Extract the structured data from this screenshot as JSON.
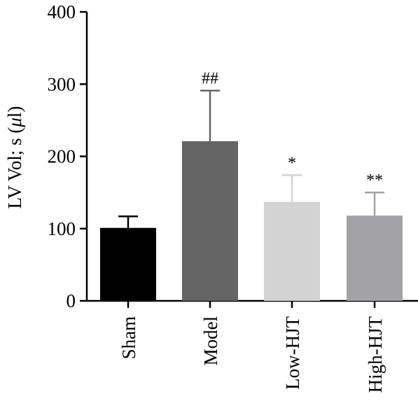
{
  "chart_data": {
    "type": "bar",
    "title": "",
    "xlabel": "",
    "ylabel_parts": {
      "main": "LV Vol; s (",
      "unit_greek": "μ",
      "unit_rest": "l)"
    },
    "ylim": [
      0,
      400
    ],
    "yticks": [
      "0",
      "100",
      "200",
      "300",
      "400"
    ],
    "ytick_values": [
      0,
      100,
      200,
      300,
      400
    ],
    "grid": false,
    "legend": "none",
    "categories": [
      "Sham",
      "Model",
      "Low-HJT",
      "High-HJT"
    ],
    "values": [
      101,
      221,
      137,
      118
    ],
    "errors": [
      16,
      70,
      37,
      32
    ],
    "annotations": [
      "",
      "##",
      "*",
      "**"
    ],
    "colors": [
      "#000000",
      "#646464",
      "#d3d3d3",
      "#a3a3a7"
    ]
  }
}
